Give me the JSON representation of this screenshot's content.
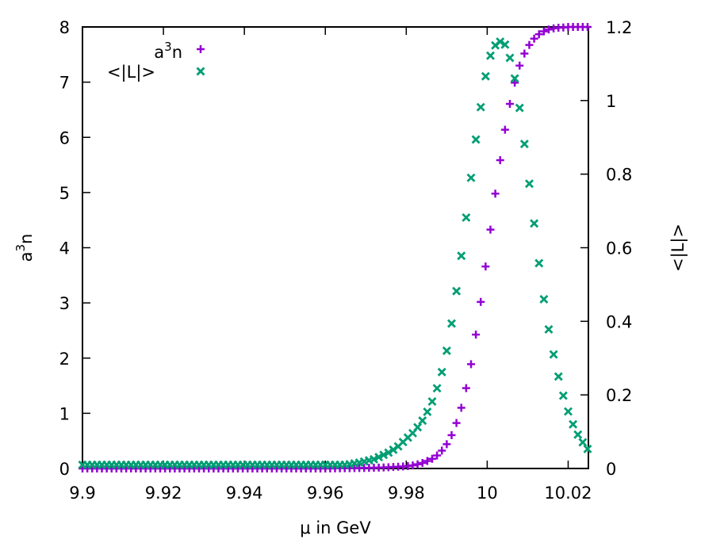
{
  "chart_data": {
    "type": "scatter",
    "xlabel": "μ in GeV",
    "ylabel_left": "a³n",
    "ylabel_right": "<|L|>",
    "xlim": [
      9.9,
      10.025
    ],
    "ylim_left": [
      0,
      8
    ],
    "ylim_right": [
      0,
      1.2
    ],
    "x_ticks": [
      9.9,
      9.92,
      9.94,
      9.96,
      9.98,
      10.0,
      10.02
    ],
    "x_tick_labels": [
      "9.9",
      "9.92",
      "9.94",
      "9.96",
      "9.98",
      "10",
      "10.02"
    ],
    "y_left_ticks": [
      0,
      1,
      2,
      3,
      4,
      5,
      6,
      7,
      8
    ],
    "y_left_tick_labels": [
      "0",
      "1",
      "2",
      "3",
      "4",
      "5",
      "6",
      "7",
      "8"
    ],
    "y_right_ticks": [
      0,
      0.2,
      0.4,
      0.6,
      0.8,
      1.0,
      1.2
    ],
    "y_right_tick_labels": [
      "0",
      "0.2",
      "0.4",
      "0.6",
      "0.8",
      "1",
      "1.2"
    ],
    "grid": false,
    "legend_placement": "top-left",
    "series": [
      {
        "name": "a³n",
        "legend_base": "a",
        "legend_sup": "3",
        "legend_tail": "n",
        "axis": "left",
        "marker": "plus",
        "color": "#9400d3",
        "x": [
          9.9,
          9.91,
          9.92,
          9.93,
          9.94,
          9.95,
          9.96,
          9.97,
          9.975,
          9.98,
          9.982,
          9.984,
          9.986,
          9.987,
          9.988,
          9.989,
          9.99,
          9.991,
          9.992,
          9.993,
          9.994,
          9.995,
          9.996,
          9.997,
          9.998,
          9.999,
          10.0,
          10.001,
          10.002,
          10.003,
          10.004,
          10.005,
          10.006,
          10.007,
          10.008,
          10.009,
          10.01,
          10.011,
          10.012,
          10.013,
          10.014,
          10.015,
          10.016,
          10.017,
          10.018,
          10.019,
          10.02,
          10.021,
          10.022,
          10.023,
          10.024,
          10.025
        ],
        "y": [
          0.0,
          0.0,
          0.0,
          0.0,
          0.0,
          0.0,
          0.0,
          0.01,
          0.02,
          0.04,
          0.06,
          0.1,
          0.16,
          0.2,
          0.26,
          0.34,
          0.44,
          0.57,
          0.74,
          0.95,
          1.2,
          1.52,
          1.89,
          2.33,
          2.81,
          3.33,
          3.88,
          4.44,
          4.98,
          5.49,
          5.97,
          6.39,
          6.75,
          7.05,
          7.3,
          7.49,
          7.63,
          7.74,
          7.82,
          7.88,
          7.92,
          7.95,
          7.97,
          7.98,
          7.99,
          7.99,
          8.0,
          8.0,
          8.0,
          8.0,
          8.0,
          8.0
        ]
      },
      {
        "name": "<|L|>",
        "axis": "right",
        "marker": "cross",
        "color": "#009e73",
        "x": [
          9.9,
          9.91,
          9.92,
          9.93,
          9.94,
          9.95,
          9.96,
          9.965,
          9.968,
          9.97,
          9.972,
          9.974,
          9.976,
          9.978,
          9.98,
          9.982,
          9.984,
          9.985,
          9.986,
          9.987,
          9.988,
          9.989,
          9.99,
          9.991,
          9.992,
          9.993,
          9.994,
          9.995,
          9.996,
          9.997,
          9.998,
          9.999,
          10.0,
          10.001,
          10.002,
          10.003,
          10.004,
          10.005,
          10.006,
          10.007,
          10.008,
          10.009,
          10.01,
          10.011,
          10.012,
          10.013,
          10.014,
          10.015,
          10.016,
          10.017,
          10.018,
          10.019,
          10.02,
          10.021,
          10.022,
          10.023,
          10.024,
          10.025
        ],
        "y": [
          0.01,
          0.01,
          0.01,
          0.01,
          0.01,
          0.01,
          0.01,
          0.01,
          0.015,
          0.02,
          0.025,
          0.035,
          0.045,
          0.06,
          0.08,
          0.1,
          0.13,
          0.15,
          0.17,
          0.2,
          0.23,
          0.27,
          0.32,
          0.38,
          0.45,
          0.53,
          0.61,
          0.7,
          0.79,
          0.88,
          0.95,
          1.03,
          1.09,
          1.13,
          1.15,
          1.16,
          1.16,
          1.14,
          1.1,
          1.05,
          0.98,
          0.9,
          0.81,
          0.72,
          0.63,
          0.54,
          0.46,
          0.39,
          0.33,
          0.28,
          0.23,
          0.19,
          0.155,
          0.125,
          0.1,
          0.08,
          0.065,
          0.05
        ]
      }
    ]
  }
}
